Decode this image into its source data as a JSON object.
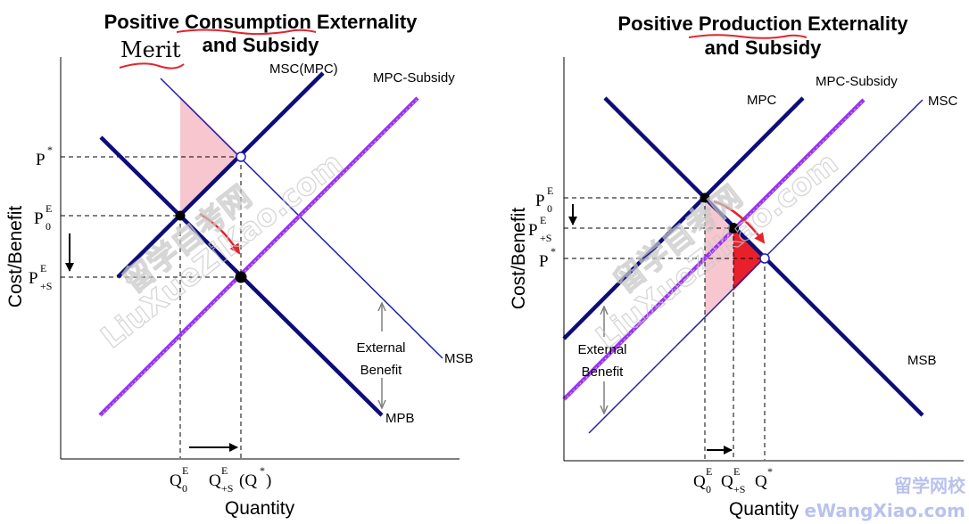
{
  "left": {
    "title_line1": "Positive Consumption Externality",
    "title_line2": "and Subsidy",
    "handwritten_note": "Merit",
    "y_axis_label": "Cost/Benefit",
    "x_axis_label": "Quantity",
    "curves": {
      "msc": "MSC(MPC)",
      "mpc_subsidy": "MPC-Subsidy",
      "msb": "MSB",
      "mpb": "MPB"
    },
    "external_benefit_line1": "External",
    "external_benefit_line2": "Benefit",
    "y_ticks": {
      "p_star": {
        "base": "P",
        "sup": "*"
      },
      "p0": {
        "base": "P",
        "sub": "0",
        "sup": "E"
      },
      "ps": {
        "base": "P",
        "sub": "+S",
        "sup": "E"
      }
    },
    "x_ticks": {
      "q0": {
        "base": "Q",
        "sub": "0",
        "sup": "E"
      },
      "qs": {
        "base": "Q",
        "sub": "+S",
        "sup": "E"
      },
      "qstar": {
        "open": "(Q",
        "sup": "*",
        "close": ")"
      }
    }
  },
  "right": {
    "title_line1": "Positive Production Externality",
    "title_line2": "and Subsidy",
    "y_axis_label": "Cost/Benefit",
    "x_axis_label": "Quantity",
    "curves": {
      "mpc": "MPC",
      "mpc_subsidy": "MPC-Subsidy",
      "msc": "MSC",
      "msb": "MSB"
    },
    "external_benefit_line1": "External",
    "external_benefit_line2": "Benefit",
    "y_ticks": {
      "p0": {
        "base": "P",
        "sub": "0",
        "sup": "E"
      },
      "ps": {
        "base": "P",
        "sub": "+S",
        "sup": "E"
      },
      "p_star": {
        "base": "P",
        "sup": "*"
      }
    },
    "x_ticks": {
      "q0": {
        "base": "Q",
        "sub": "0",
        "sup": "E"
      },
      "qs": {
        "base": "Q",
        "sub": "+S",
        "sup": "E"
      },
      "qstar": {
        "base": "Q",
        "sup": "*"
      }
    }
  },
  "watermarks": {
    "diagonal_cn": "留学自考网",
    "diagonal_en": "LiuXueZiKao.com",
    "corner_cn": "留学网校",
    "corner_en": "eWangXiao.com"
  },
  "colors": {
    "curve_navy": "#0d0d7a",
    "curve_blue": "#1f1fb0",
    "subsidy_purple": "#9933ee",
    "welfare_pink": "#f7c6cf",
    "welfare_red": "#e8202a",
    "annotation_red": "#e3242b",
    "arrow_gray": "#7f7f7f"
  }
}
